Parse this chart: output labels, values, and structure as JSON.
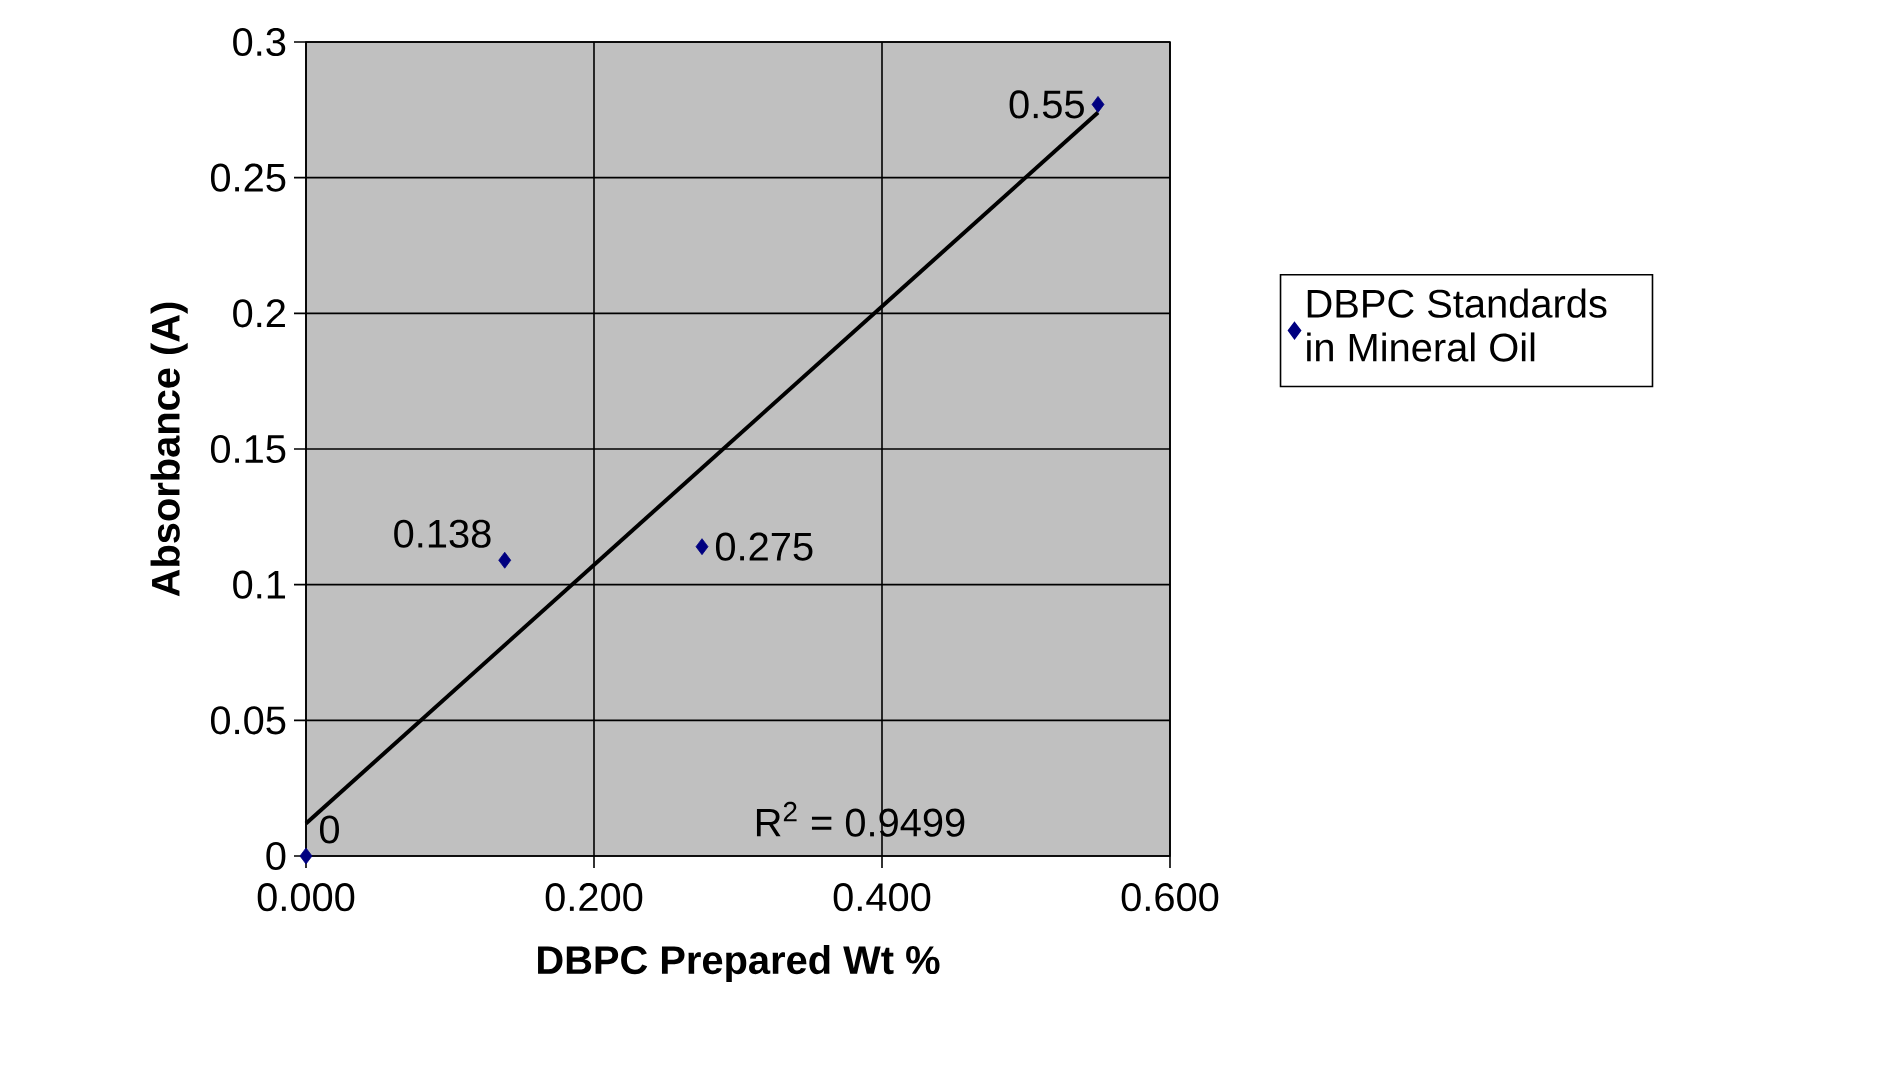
{
  "chart_data": {
    "type": "scatter",
    "xlabel": "DBPC Prepared Wt %",
    "ylabel": "Absorbance (A)",
    "xlim": [
      0,
      0.6
    ],
    "ylim": [
      0,
      0.3
    ],
    "xticks": [
      {
        "value": 0,
        "label": "0.000"
      },
      {
        "value": 0.2,
        "label": "0.200"
      },
      {
        "value": 0.4,
        "label": "0.400"
      },
      {
        "value": 0.6,
        "label": "0.600"
      }
    ],
    "yticks": [
      0,
      0.05,
      0.1,
      0.15,
      0.2,
      0.25,
      0.3
    ],
    "grid": true,
    "legend": "right",
    "marker": "diamond",
    "annotations": [
      {
        "text": "0",
        "x": 0,
        "y": 0
      },
      {
        "text": "0.138",
        "x": 0.138,
        "y": 0.109
      },
      {
        "text": "0.275",
        "x": 0.275,
        "y": 0.114
      },
      {
        "text": "0.55",
        "x": 0.55,
        "y": 0.277
      },
      "R$^{2}$ = 0.9499"
    ],
    "series": [
      {
        "name": "DBPC Standards in Mineral Oil",
        "color": "#000080",
        "x": [
          0,
          0.138,
          0.275,
          0.55
        ],
        "values": [
          0,
          0.109,
          0.114,
          0.277
        ]
      },
      {
        "type": "line",
        "color": "#000000",
        "marker": "none",
        "x": [
          0,
          0.55
        ],
        "values": [
          0.012,
          0.274
        ]
      }
    ]
  }
}
